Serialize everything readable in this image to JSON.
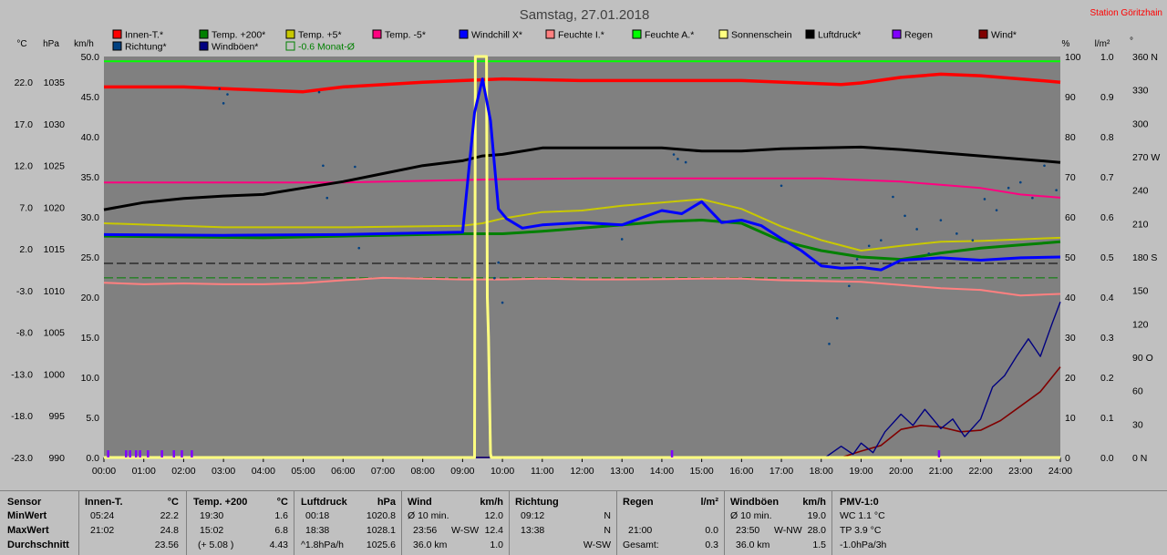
{
  "chart_data": {
    "type": "line",
    "title": "Samstag, 27.01.2018",
    "station": "Station Göritzhain",
    "x_ticks": [
      "00:00",
      "01:00",
      "02:00",
      "03:00",
      "04:00",
      "05:00",
      "06:00",
      "07:00",
      "08:00",
      "09:00",
      "10:00",
      "11:00",
      "12:00",
      "13:00",
      "14:00",
      "15:00",
      "16:00",
      "17:00",
      "18:00",
      "19:00",
      "20:00",
      "21:00",
      "22:00",
      "23:00",
      "24:00"
    ],
    "axes": {
      "temp": {
        "unit": "°C",
        "range": [
          -23,
          27
        ],
        "ticks": [
          "22.0",
          "17.0",
          "12.0",
          "7.0",
          "2.0",
          "-3.0",
          "-8.0",
          "-13.0",
          "-18.0",
          "-23.0"
        ]
      },
      "pressure": {
        "unit": "hPa",
        "range": [
          990,
          1040
        ],
        "ticks": [
          "1035",
          "1030",
          "1025",
          "1020",
          "1015",
          "1010",
          "1005",
          "1000",
          "995",
          "990"
        ]
      },
      "wind": {
        "unit": "km/h",
        "range": [
          0,
          50
        ],
        "ticks": [
          "50.0",
          "45.0",
          "40.0",
          "35.0",
          "30.0",
          "25.0",
          "20.0",
          "15.0",
          "10.0",
          "5.0",
          "0.0"
        ]
      },
      "humidity": {
        "unit": "%",
        "range": [
          0,
          100
        ],
        "ticks": [
          "100",
          "90",
          "80",
          "70",
          "60",
          "50",
          "40",
          "30",
          "20",
          "10",
          "0"
        ]
      },
      "rain": {
        "unit": "l/m²",
        "range": [
          0,
          1
        ],
        "ticks": [
          "1.0",
          "0.9",
          "0.8",
          "0.7",
          "0.6",
          "0.5",
          "0.4",
          "0.3",
          "0.2",
          "0.1",
          "0.0"
        ]
      },
      "direction": {
        "unit": "°",
        "range": [
          0,
          360
        ],
        "ticks": [
          "360 N",
          "330",
          "300",
          "270 W",
          "240",
          "210",
          "180 S",
          "150",
          "120",
          "90 O",
          "60",
          "30",
          "0 N"
        ]
      }
    },
    "legend": [
      {
        "name": "Innen-T.*",
        "color": "#ff0000"
      },
      {
        "name": "Temp. +200*",
        "color": "#008000"
      },
      {
        "name": "Temp. +5*",
        "color": "#c8c800"
      },
      {
        "name": "Temp. -5*",
        "color": "#ff0080"
      },
      {
        "name": "Windchill X*",
        "color": "#0000ff"
      },
      {
        "name": "Feuchte I.*",
        "color": "#ff8080"
      },
      {
        "name": "Feuchte A.*",
        "color": "#00ff00"
      },
      {
        "name": "Sonnenschein",
        "color": "#ffff80"
      },
      {
        "name": "Luftdruck*",
        "color": "#000000"
      },
      {
        "name": "Regen",
        "color": "#8000ff"
      },
      {
        "name": "Wind*",
        "color": "#800000"
      },
      {
        "name": "Richtung*",
        "color": "#004080"
      },
      {
        "name": "Windböen*",
        "color": "#000080"
      },
      {
        "name": "-0.6 Monat-Ø",
        "color": "#008000"
      }
    ],
    "series": [
      {
        "name": "Innen-T.*",
        "axis": "temp",
        "color": "#ff0000",
        "x": [
          0,
          2,
          4,
          5,
          6,
          8,
          9,
          10,
          12,
          14,
          16,
          18,
          18.5,
          19,
          20,
          21,
          22,
          23,
          24
        ],
        "y": [
          23.2,
          23.2,
          22.8,
          22.6,
          23.2,
          23.8,
          24.0,
          24.2,
          24.0,
          24.0,
          24.0,
          23.6,
          23.5,
          23.7,
          24.4,
          24.8,
          24.6,
          24.2,
          23.8
        ]
      },
      {
        "name": "Luftdruck*",
        "axis": "pressure",
        "color": "#000000",
        "x": [
          0,
          1,
          2,
          3,
          4,
          5,
          6,
          7,
          8,
          9,
          9.5,
          10,
          11,
          12,
          13,
          14,
          15,
          16,
          17,
          18,
          19,
          20,
          21,
          22,
          23,
          24
        ],
        "y": [
          1020.9,
          1021.8,
          1022.3,
          1022.6,
          1022.8,
          1023.6,
          1024.4,
          1025.4,
          1026.4,
          1027.0,
          1027.6,
          1027.8,
          1028.6,
          1028.6,
          1028.6,
          1028.6,
          1028.2,
          1028.2,
          1028.5,
          1028.6,
          1028.7,
          1028.4,
          1028.0,
          1027.6,
          1027.2,
          1026.8
        ]
      },
      {
        "name": "Temp. -5*",
        "axis": "temp",
        "color": "#ff0080",
        "x": [
          0,
          6,
          10,
          12,
          15,
          18,
          20,
          22,
          23,
          24
        ],
        "y": [
          11.3,
          11.3,
          11.7,
          11.8,
          11.8,
          11.8,
          11.4,
          10.6,
          9.8,
          9.4
        ]
      },
      {
        "name": "Temp. +5*",
        "axis": "temp",
        "color": "#c8c800",
        "x": [
          0,
          3,
          6,
          9,
          9.5,
          10,
          11,
          12,
          13,
          14,
          15,
          16,
          17,
          18,
          19,
          20,
          21,
          22,
          23,
          24
        ],
        "y": [
          6.2,
          5.7,
          5.7,
          5.9,
          6.2,
          6.8,
          7.6,
          7.8,
          8.4,
          8.8,
          9.2,
          8.0,
          5.8,
          4.1,
          2.8,
          3.4,
          3.9,
          4.0,
          4.2,
          4.4
        ]
      },
      {
        "name": "Temp. +200*",
        "axis": "temp",
        "color": "#008000",
        "x": [
          0,
          2,
          4,
          6,
          8,
          9,
          10,
          11,
          12,
          13,
          14,
          15,
          16,
          17,
          18,
          19,
          20,
          21,
          22,
          23,
          24
        ],
        "y": [
          4.6,
          4.5,
          4.4,
          4.6,
          4.8,
          4.9,
          4.9,
          5.2,
          5.6,
          6.0,
          6.4,
          6.6,
          6.2,
          4.0,
          2.8,
          2.0,
          1.7,
          2.5,
          3.1,
          3.5,
          3.9
        ]
      },
      {
        "name": "Windchill X*",
        "axis": "temp",
        "color": "#0000ff",
        "x": [
          0,
          3,
          6,
          9,
          9.3,
          9.5,
          9.7,
          9.9,
          10.1,
          10.5,
          11,
          12,
          13,
          14,
          14.5,
          15,
          15.5,
          16,
          16.5,
          17,
          17.5,
          18,
          18.5,
          19,
          19.5,
          20,
          21,
          22,
          23,
          24
        ],
        "y": [
          4.8,
          4.7,
          4.8,
          5.1,
          20.0,
          24.2,
          19.0,
          8.0,
          6.8,
          5.6,
          6.0,
          6.3,
          6.0,
          7.8,
          7.4,
          8.9,
          6.3,
          6.6,
          5.9,
          4.3,
          2.8,
          0.9,
          0.6,
          0.7,
          0.4,
          1.6,
          1.9,
          1.6,
          1.9,
          2.0
        ]
      },
      {
        "name": "Feuchte I.*",
        "axis": "humidity",
        "color": "#ff8080",
        "x": [
          0,
          1,
          2,
          3,
          4,
          5,
          6,
          7,
          8,
          9,
          10,
          11,
          12,
          13,
          14,
          15,
          16,
          17,
          18,
          19,
          20,
          21,
          22,
          23,
          24
        ],
        "y": [
          43.6,
          43.2,
          43.4,
          43.2,
          43.2,
          43.5,
          44.2,
          44.8,
          44.6,
          44.4,
          44.4,
          44.6,
          44.4,
          44.4,
          44.5,
          44.6,
          44.6,
          44.2,
          44.0,
          43.8,
          43.0,
          42.2,
          41.8,
          40.4,
          40.8
        ]
      },
      {
        "name": "Feuchte A.*",
        "axis": "humidity",
        "color": "#00ff00",
        "x": [
          0,
          24
        ],
        "y": [
          98.8,
          98.8
        ]
      },
      {
        "name": "Sonnenschein",
        "axis": "wind",
        "color": "#ffff80",
        "x": [
          0,
          9.3,
          9.32,
          9.6,
          9.62,
          9.65,
          9.7,
          9.72,
          24
        ],
        "y": [
          0,
          0,
          50,
          50,
          20,
          15,
          0.5,
          0,
          0
        ]
      },
      {
        "name": "Wind*",
        "axis": "wind",
        "color": "#800000",
        "x": [
          0,
          18.5,
          19,
          19.5,
          20,
          20.5,
          21,
          21.5,
          22,
          22.5,
          23,
          23.5,
          24
        ],
        "y": [
          0,
          0,
          0.8,
          1.5,
          3.5,
          4.0,
          3.8,
          3.2,
          3.4,
          4.6,
          6.4,
          8.2,
          11.3
        ]
      },
      {
        "name": "Windböen*",
        "axis": "wind",
        "color": "#000080",
        "x": [
          0,
          18.1,
          18.5,
          18.8,
          19,
          19.3,
          19.6,
          20,
          20.3,
          20.6,
          21,
          21.3,
          21.6,
          22,
          22.3,
          22.6,
          22.9,
          23.2,
          23.5,
          23.8,
          24
        ],
        "y": [
          0,
          0,
          1.4,
          0.4,
          1.8,
          0.6,
          3.2,
          5.4,
          4.0,
          6.0,
          3.6,
          4.8,
          2.6,
          4.8,
          8.8,
          10.2,
          12.6,
          14.8,
          12.6,
          16.8,
          19.4
        ]
      }
    ],
    "reference_lines": [
      {
        "name": "Monat-Ø dashed",
        "axis": "temp",
        "color": "#000000",
        "value": 1.2
      },
      {
        "name": "-0.6 Monat-Ø",
        "axis": "temp",
        "color": "#008000",
        "value": -0.6
      }
    ],
    "direction_points": {
      "axis": "direction",
      "x": [
        2.9,
        3.0,
        3.1,
        5.4,
        5.5,
        5.6,
        6.3,
        6.4,
        9.8,
        9.9,
        10.0,
        13.0,
        14.3,
        14.4,
        14.6,
        17.0,
        18.2,
        18.4,
        18.7,
        18.9,
        19.2,
        19.5,
        19.8,
        20.1,
        20.4,
        20.7,
        21.0,
        21.4,
        21.8,
        22.1,
        22.4,
        22.7,
        23.0,
        23.3,
        23.6,
        23.9
      ],
      "y": [
        331,
        318,
        326,
        328,
        262,
        233,
        261,
        188,
        161,
        175,
        139,
        196,
        272,
        268,
        265,
        244,
        102,
        125,
        154,
        178,
        190,
        195,
        234,
        217,
        205,
        183,
        213,
        201,
        195,
        232,
        222,
        242,
        247,
        233,
        262,
        240
      ]
    },
    "rain_bars": {
      "axis": "rain",
      "x": [
        0.1,
        0.55,
        0.65,
        0.8,
        0.9,
        1.1,
        1.45,
        1.75,
        1.95,
        2.2,
        14.25,
        20.95
      ],
      "y": [
        0.018,
        0.018,
        0.018,
        0.018,
        0.018,
        0.018,
        0.018,
        0.018,
        0.018,
        0.018,
        0.018,
        0.018
      ]
    }
  },
  "stats": {
    "sensor": {
      "title": "Sensor",
      "rows": [
        "MinWert",
        "MaxWert",
        "Durchschnitt"
      ]
    },
    "innen": {
      "title": "Innen-T.",
      "unit": "°C",
      "min_time": "05:24",
      "min_val": "22.2",
      "max_time": "21:02",
      "max_val": "24.8",
      "avg": "23.56"
    },
    "temp200": {
      "title": "Temp. +200",
      "unit": "°C",
      "min_time": "19:30",
      "min_val": "1.6",
      "max_time": "15:02",
      "max_val": "6.8",
      "avg_note": "(+ 5.08 )",
      "avg": "4.43"
    },
    "druck": {
      "title": "Luftdruck",
      "unit": "hPa",
      "min_time": "00:18",
      "min_val": "1020.8",
      "max_time": "18:38",
      "max_val": "1028.1",
      "avg_note": "^1.8hPa/h",
      "avg": "1025.6"
    },
    "wind": {
      "title": "Wind",
      "unit": "km/h",
      "r0_a": "Ø 10 min.",
      "r0_b": "12.0",
      "r1_a": "23:56",
      "r1_dir": "W-SW",
      "r1_b": "12.4",
      "r2_a": "36.0 km",
      "r2_b": "1.0"
    },
    "richtung": {
      "title": "Richtung",
      "r0_a": "09:12",
      "r0_b": "N",
      "r1_a": "13:38",
      "r1_b": "N",
      "r2_b": "W-SW"
    },
    "regen": {
      "title": "Regen",
      "unit": "l/m²",
      "r1_a": "21:00",
      "r1_b": "0.0",
      "r2_a": "Gesamt:",
      "r2_b": "0.3"
    },
    "boeen": {
      "title": "Windböen",
      "unit": "km/h",
      "r0_a": "Ø 10 min.",
      "r0_b": "19.0",
      "r1_a": "23:50",
      "r1_dir": "W-NW",
      "r1_b": "28.0",
      "r2_a": "36.0 km",
      "r2_b": "1.5"
    },
    "pmv": {
      "title": "PMV-1:0",
      "r0": "WC 1.1 °C",
      "r1": "TP 3.9 °C",
      "r2": "-1.0hPa/3h"
    }
  }
}
